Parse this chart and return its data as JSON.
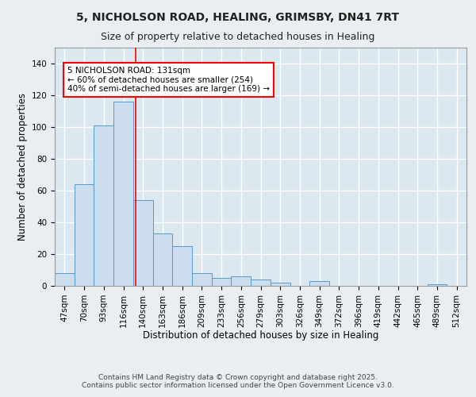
{
  "title_line1": "5, NICHOLSON ROAD, HEALING, GRIMSBY, DN41 7RT",
  "title_line2": "Size of property relative to detached houses in Healing",
  "xlabel": "Distribution of detached houses by size in Healing",
  "ylabel": "Number of detached properties",
  "bar_color": "#ccdded",
  "bar_edge_color": "#5599cc",
  "background_color": "#dce8f0",
  "grid_color": "#ffffff",
  "fig_background": "#e8eef2",
  "categories": [
    "47sqm",
    "70sqm",
    "93sqm",
    "116sqm",
    "140sqm",
    "163sqm",
    "186sqm",
    "209sqm",
    "233sqm",
    "256sqm",
    "279sqm",
    "303sqm",
    "326sqm",
    "349sqm",
    "372sqm",
    "396sqm",
    "419sqm",
    "442sqm",
    "465sqm",
    "489sqm",
    "512sqm"
  ],
  "values": [
    8,
    64,
    101,
    116,
    54,
    33,
    25,
    8,
    5,
    6,
    4,
    2,
    0,
    3,
    0,
    0,
    0,
    0,
    0,
    1,
    0
  ],
  "red_line_x": 3.62,
  "annotation_text": "5 NICHOLSON ROAD: 131sqm\n← 60% of detached houses are smaller (254)\n40% of semi-detached houses are larger (169) →",
  "ylim": [
    0,
    150
  ],
  "yticks": [
    0,
    20,
    40,
    60,
    80,
    100,
    120,
    140
  ],
  "footer_text": "Contains HM Land Registry data © Crown copyright and database right 2025.\nContains public sector information licensed under the Open Government Licence v3.0.",
  "title_fontsize": 10,
  "subtitle_fontsize": 9,
  "axis_label_fontsize": 8.5,
  "tick_fontsize": 7.5,
  "annotation_fontsize": 7.5,
  "footer_fontsize": 6.5
}
